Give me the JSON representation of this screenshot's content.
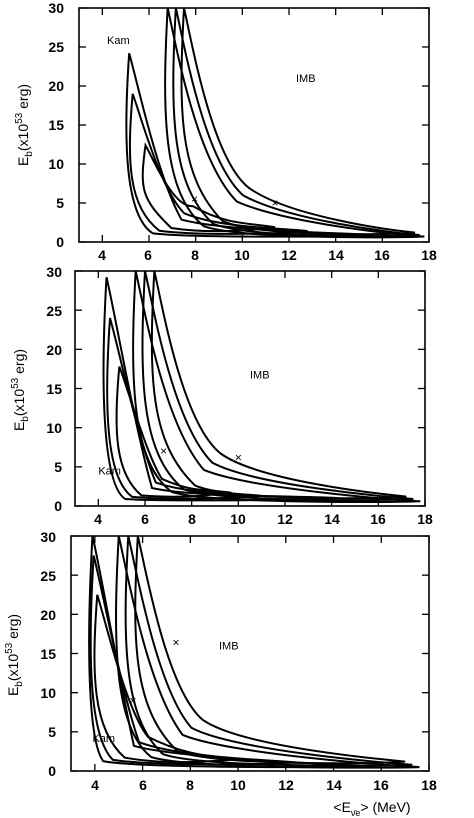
{
  "chart_data": [
    {
      "type": "line",
      "xlim": [
        3,
        18
      ],
      "ylim": [
        0,
        30
      ],
      "x_ticks": [
        "4",
        "6",
        "8",
        "10",
        "12",
        "14",
        "16",
        "18"
      ],
      "y_ticks": [
        "0",
        "5",
        "10",
        "15",
        "20",
        "25",
        "30"
      ],
      "ylabel_main": "E",
      "ylabel_sub": "b",
      "ylabel_open": "(x10",
      "ylabel_sup": "53",
      "ylabel_close": " erg)",
      "annotations": [
        {
          "text": "Kam",
          "x": 4.2,
          "y": 25.4
        },
        {
          "text": "IMB",
          "x": 12.3,
          "y": 20.5
        }
      ],
      "best_fits": [
        {
          "name": "Kam",
          "x": 7.95,
          "y": 5.5
        },
        {
          "name": "IMB",
          "x": 11.4,
          "y": 5.0
        }
      ],
      "contours": [
        {
          "name": "Kam",
          "peak": [
            5.15,
            24.2
          ],
          "knee": [
            6.4,
            2.5
          ],
          "tail": [
            15.6,
            0.9
          ],
          "width": 2.2
        },
        {
          "name": "Kam",
          "peak": [
            5.3,
            19.0
          ],
          "knee": [
            6.7,
            3.2
          ],
          "tail": [
            12.8,
            1.4
          ],
          "width": 1.8
        },
        {
          "name": "Kam",
          "peak": [
            5.85,
            12.4
          ],
          "knee": [
            7.2,
            4.0
          ],
          "tail": [
            11.4,
            1.9
          ],
          "width": 1.5
        },
        {
          "name": "IMB",
          "peak": [
            6.8,
            30.0
          ],
          "knee": [
            8.6,
            4.5
          ],
          "tail": [
            17.8,
            0.7
          ],
          "width": 2.6
        },
        {
          "name": "IMB",
          "peak": [
            7.15,
            30.0
          ],
          "knee": [
            9.0,
            5.2
          ],
          "tail": [
            17.6,
            0.9
          ],
          "width": 2.3
        },
        {
          "name": "IMB",
          "peak": [
            7.5,
            30.0
          ],
          "knee": [
            9.4,
            6.0
          ],
          "tail": [
            17.4,
            1.2
          ],
          "width": 2.0
        }
      ]
    },
    {
      "type": "line",
      "xlim": [
        3,
        18
      ],
      "ylim": [
        0,
        30
      ],
      "x_ticks": [
        "4",
        "6",
        "8",
        "10",
        "12",
        "14",
        "16",
        "18"
      ],
      "y_ticks": [
        "0",
        "5",
        "10",
        "15",
        "20",
        "25",
        "30"
      ],
      "ylabel_main": "E",
      "ylabel_sub": "b",
      "ylabel_open": "(x10",
      "ylabel_sup": "53",
      "ylabel_close": " erg)",
      "annotations": [
        {
          "text": "Kam",
          "x": 4.0,
          "y": 4.0
        },
        {
          "text": "IMB",
          "x": 10.5,
          "y": 16.3
        }
      ],
      "best_fits": [
        {
          "name": "Kam",
          "x": 6.8,
          "y": 7.0
        },
        {
          "name": "IMB",
          "x": 10.0,
          "y": 6.2
        }
      ],
      "contours": [
        {
          "name": "Kam",
          "peak": [
            4.35,
            29.2
          ],
          "knee": [
            5.4,
            2.0
          ],
          "tail": [
            14.3,
            1.0
          ],
          "width": 2.0
        },
        {
          "name": "Kam",
          "peak": [
            4.5,
            24.0
          ],
          "knee": [
            5.7,
            2.6
          ],
          "tail": [
            11.0,
            1.3
          ],
          "width": 1.7
        },
        {
          "name": "Kam",
          "peak": [
            4.9,
            17.8
          ],
          "knee": [
            6.1,
            3.0
          ],
          "tail": [
            9.7,
            1.7
          ],
          "width": 1.4
        },
        {
          "name": "IMB",
          "peak": [
            5.6,
            30.0
          ],
          "knee": [
            7.4,
            4.0
          ],
          "tail": [
            17.8,
            0.6
          ],
          "width": 2.5
        },
        {
          "name": "IMB",
          "peak": [
            6.0,
            30.0
          ],
          "knee": [
            7.9,
            4.8
          ],
          "tail": [
            17.5,
            0.9
          ],
          "width": 2.2
        },
        {
          "name": "IMB",
          "peak": [
            6.4,
            30.0
          ],
          "knee": [
            8.4,
            5.8
          ],
          "tail": [
            17.2,
            1.2
          ],
          "width": 1.9
        }
      ]
    },
    {
      "type": "line",
      "xlim": [
        3,
        18
      ],
      "ylim": [
        0,
        30
      ],
      "x_ticks": [
        "4",
        "6",
        "8",
        "10",
        "12",
        "14",
        "16",
        "18"
      ],
      "y_ticks": [
        "0",
        "5",
        "10",
        "15",
        "20",
        "25",
        "30"
      ],
      "ylabel_main": "E",
      "ylabel_sub": "b",
      "ylabel_open": "(x10",
      "ylabel_sup": "53",
      "ylabel_close": " erg)",
      "xlabel_open": "<E",
      "xlabel_sub": "ν̄e",
      "xlabel_close": ">  (MeV)",
      "annotations": [
        {
          "text": "Kam",
          "x": 3.9,
          "y": 3.7
        },
        {
          "text": "IMB",
          "x": 9.2,
          "y": 15.5
        }
      ],
      "best_fits": [
        {
          "name": "Kam",
          "x": 5.6,
          "y": 9.0
        },
        {
          "name": "IMB",
          "x": 7.4,
          "y": 16.4
        }
      ],
      "contours": [
        {
          "name": "Kam",
          "peak": [
            3.9,
            30.0
          ],
          "knee": [
            4.6,
            2.8
          ],
          "tail": [
            15.8,
            0.6
          ],
          "width": 2.3
        },
        {
          "name": "Kam",
          "peak": [
            3.95,
            27.5
          ],
          "knee": [
            5.0,
            3.2
          ],
          "tail": [
            12.4,
            1.1
          ],
          "width": 1.9
        },
        {
          "name": "Kam",
          "peak": [
            4.1,
            22.5
          ],
          "knee": [
            5.5,
            3.8
          ],
          "tail": [
            9.9,
            1.5
          ],
          "width": 1.6
        },
        {
          "name": "IMB",
          "peak": [
            5.0,
            30.0
          ],
          "knee": [
            6.6,
            4.0
          ],
          "tail": [
            17.6,
            0.5
          ],
          "width": 2.4
        },
        {
          "name": "IMB",
          "peak": [
            5.4,
            30.0
          ],
          "knee": [
            7.1,
            4.8
          ],
          "tail": [
            17.3,
            0.8
          ],
          "width": 2.1
        },
        {
          "name": "IMB",
          "peak": [
            5.8,
            30.0
          ],
          "knee": [
            7.7,
            5.7
          ],
          "tail": [
            17.0,
            1.2
          ],
          "width": 1.8
        }
      ]
    }
  ]
}
